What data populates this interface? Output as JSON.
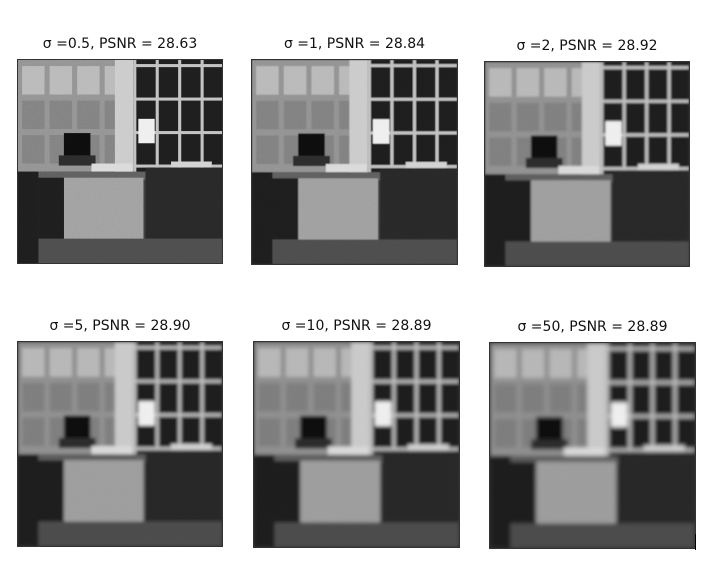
{
  "panels": [
    {
      "title": "σ =0.5, PSNR = 28.63",
      "blur": 0.3,
      "noise": 0.9
    },
    {
      "title": "σ =1, PSNR = 28.84",
      "blur": 0.6,
      "noise": 0.75
    },
    {
      "title": "σ =2, PSNR = 28.92",
      "blur": 1.0,
      "noise": 0.55
    },
    {
      "title": "σ =5, PSNR = 28.90",
      "blur": 1.6,
      "noise": 0.4
    },
    {
      "title": "σ =10, PSNR = 28.89",
      "blur": 1.9,
      "noise": 0.35
    },
    {
      "title": "σ =50, PSNR = 28.89",
      "blur": 2.2,
      "noise": 0.3
    }
  ]
}
